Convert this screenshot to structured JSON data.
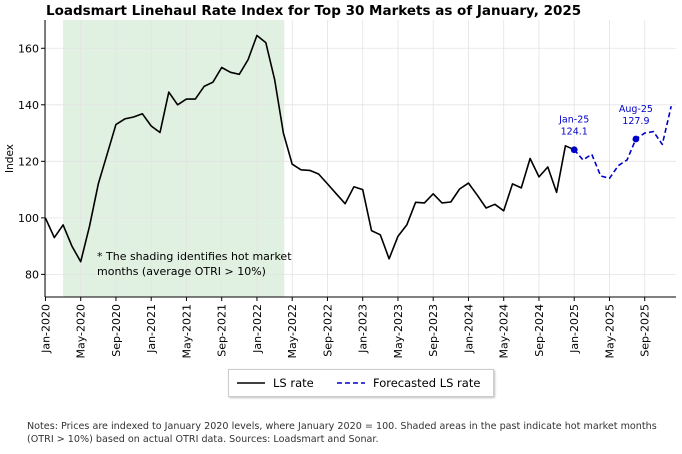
{
  "title": "Loadsmart Linehaul Rate Index for Top 30 Markets as of January, 2025",
  "notes": "Notes: Prices are indexed to January 2020 levels, where January 2020 = 100. Shaded areas in the past indicate hot market months (OTRI > 10%) based on actual OTRI data. Sources: Loadsmart and Sonar.",
  "shading_note": [
    "* The shading identifies hot market",
    "months (average OTRI > 10%)"
  ],
  "chart_data": {
    "type": "line",
    "title": "Loadsmart Linehaul Rate Index for Top 30 Markets as of January, 2025",
    "xlabel": "",
    "ylabel": "Index",
    "ylim": [
      72,
      170
    ],
    "yticks": [
      80,
      100,
      120,
      140,
      160
    ],
    "xrange": [
      "2020-01",
      "2025-12"
    ],
    "xticks": [
      "Jan-2020",
      "May-2020",
      "Sep-2020",
      "Jan-2021",
      "May-2021",
      "Sep-2021",
      "Jan-2022",
      "May-2022",
      "Sep-2022",
      "Jan-2023",
      "May-2023",
      "Sep-2023",
      "Jan-2024",
      "May-2024",
      "Sep-2024",
      "Jan-2025",
      "May-2025",
      "Sep-2025"
    ],
    "grid": true,
    "legend_position": "bottom-center",
    "shaded_region": {
      "start": "2020-03",
      "end": "2022-04",
      "color": "#e1f1e1",
      "label": "hot market months (average OTRI > 10%)"
    },
    "series": [
      {
        "name": "LS rate",
        "color": "#000000",
        "style": "solid",
        "x": [
          "2020-01",
          "2020-02",
          "2020-03",
          "2020-04",
          "2020-05",
          "2020-06",
          "2020-07",
          "2020-08",
          "2020-09",
          "2020-10",
          "2020-11",
          "2020-12",
          "2021-01",
          "2021-02",
          "2021-03",
          "2021-04",
          "2021-05",
          "2021-06",
          "2021-07",
          "2021-08",
          "2021-09",
          "2021-10",
          "2021-11",
          "2021-12",
          "2022-01",
          "2022-02",
          "2022-03",
          "2022-04",
          "2022-05",
          "2022-06",
          "2022-07",
          "2022-08",
          "2022-09",
          "2022-10",
          "2022-11",
          "2022-12",
          "2023-01",
          "2023-02",
          "2023-03",
          "2023-04",
          "2023-05",
          "2023-06",
          "2023-07",
          "2023-08",
          "2023-09",
          "2023-10",
          "2023-11",
          "2023-12",
          "2024-01",
          "2024-02",
          "2024-03",
          "2024-04",
          "2024-05",
          "2024-06",
          "2024-07",
          "2024-08",
          "2024-09",
          "2024-10",
          "2024-11",
          "2024-12",
          "2025-01"
        ],
        "values": [
          100,
          93,
          97.5,
          90,
          84.5,
          97,
          112,
          122.5,
          133,
          135,
          135.7,
          136.8,
          132.5,
          130.2,
          144.5,
          140,
          142,
          142,
          146.5,
          148,
          153.2,
          151.5,
          150.8,
          156,
          164.5,
          162,
          149,
          130,
          119,
          117,
          116.8,
          115.5,
          112,
          108.5,
          105,
          111,
          110,
          95.5,
          94,
          85.5,
          93.5,
          97.5,
          105.5,
          105.3,
          108.5,
          105.3,
          105.6,
          110.2,
          112.3,
          108,
          103.5,
          104.8,
          102.5,
          112,
          110.6,
          121,
          114.5,
          118,
          109,
          125.5,
          124.1
        ]
      },
      {
        "name": "Forecasted LS rate",
        "color": "#0000cc",
        "style": "dashed",
        "x": [
          "2025-01",
          "2025-02",
          "2025-03",
          "2025-04",
          "2025-05",
          "2025-06",
          "2025-07",
          "2025-08",
          "2025-09",
          "2025-10",
          "2025-11",
          "2025-12"
        ],
        "values": [
          124.1,
          120.5,
          122.5,
          114.8,
          114,
          118.5,
          120.5,
          127.9,
          130,
          130.5,
          126,
          139.5
        ]
      }
    ],
    "annotations": [
      {
        "x": "2025-01",
        "y": 124.1,
        "label": [
          "Jan-25",
          "124.1"
        ]
      },
      {
        "x": "2025-08",
        "y": 127.9,
        "label": [
          "Aug-25",
          "127.9"
        ]
      }
    ]
  }
}
